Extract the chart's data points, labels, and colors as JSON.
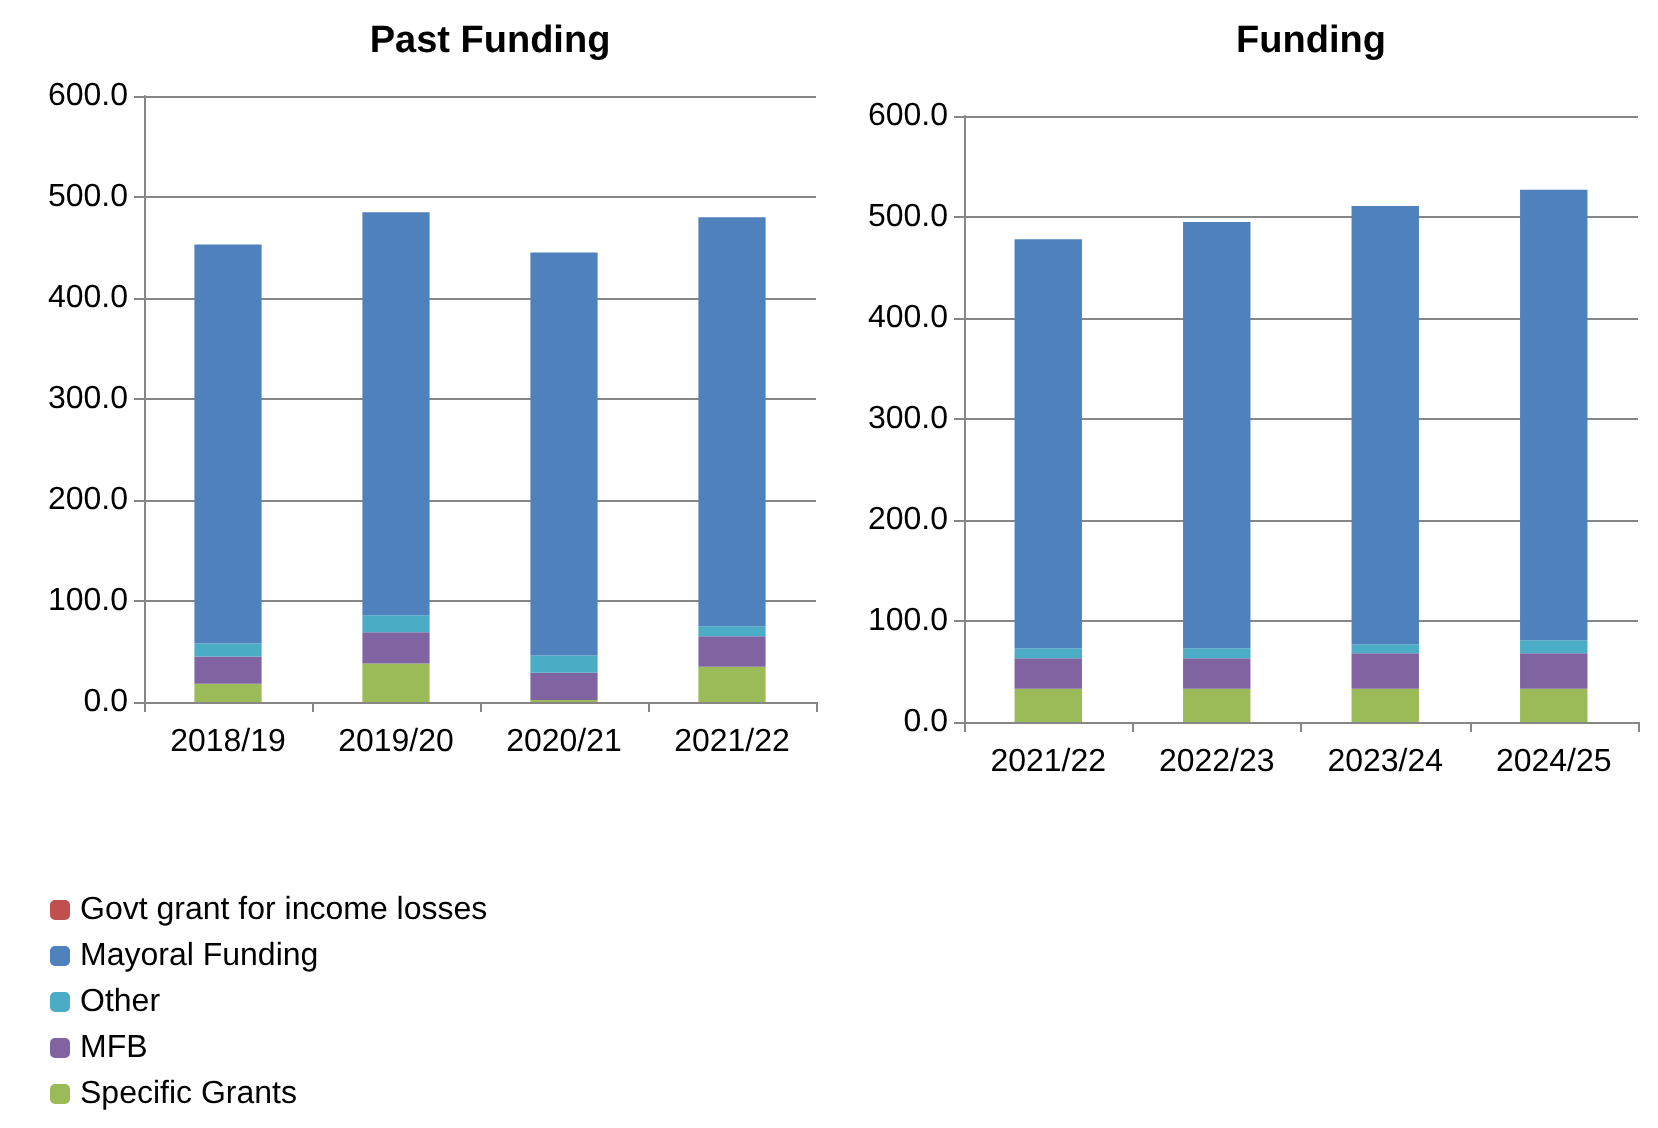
{
  "chart_data": [
    {
      "type": "bar",
      "title": "Past Funding",
      "stacked": true,
      "categories": [
        "2018/19",
        "2019/20",
        "2020/21",
        "2021/22"
      ],
      "series": [
        {
          "name": "Specific Grants",
          "color": "#9bbb59",
          "values": [
            18,
            38,
            2,
            35
          ]
        },
        {
          "name": "MFB",
          "color": "#8064a2",
          "values": [
            27,
            31,
            27,
            30
          ]
        },
        {
          "name": "Other",
          "color": "#4bacc6",
          "values": [
            13,
            17,
            17,
            10
          ]
        },
        {
          "name": "Mayoral Funding",
          "color": "#4f81bd",
          "values": [
            395,
            399,
            399,
            405
          ]
        },
        {
          "name": "Govt grant for income losses",
          "color": "#c0504d",
          "values": [
            0,
            0,
            0,
            0
          ]
        }
      ],
      "ylim": [
        0,
        600
      ],
      "yticks": [
        {
          "value": 0,
          "label": "0.0"
        },
        {
          "value": 100,
          "label": "100.0"
        },
        {
          "value": 200,
          "label": "200.0"
        },
        {
          "value": 300,
          "label": "300.0"
        },
        {
          "value": 400,
          "label": "400.0"
        },
        {
          "value": 500,
          "label": "500.0"
        },
        {
          "value": 600,
          "label": "600.0"
        }
      ],
      "grid": "y",
      "legend": "bottom left"
    },
    {
      "type": "bar",
      "title": "Funding",
      "stacked": true,
      "categories": [
        "2021/22",
        "2022/23",
        "2023/24",
        "2024/25"
      ],
      "series": [
        {
          "color": "#9bbb59",
          "values": [
            33,
            33,
            33,
            33
          ]
        },
        {
          "color": "#8064a2",
          "values": [
            30,
            30,
            35,
            35
          ]
        },
        {
          "color": "#4bacc6",
          "values": [
            10,
            10,
            9,
            13
          ]
        },
        {
          "color": "#4f81bd",
          "values": [
            405,
            422,
            434,
            446
          ]
        }
      ],
      "ylim": [
        0,
        600
      ],
      "yticks": [
        {
          "value": 0,
          "label": "0.0"
        },
        {
          "value": 100,
          "label": "100.0"
        },
        {
          "value": 200,
          "label": "200.0"
        },
        {
          "value": 300,
          "label": "300.0"
        },
        {
          "value": 400,
          "label": "400.0"
        },
        {
          "value": 500,
          "label": "500.0"
        },
        {
          "value": 600,
          "label": "600.0"
        }
      ],
      "grid": "y",
      "legend": false
    }
  ]
}
